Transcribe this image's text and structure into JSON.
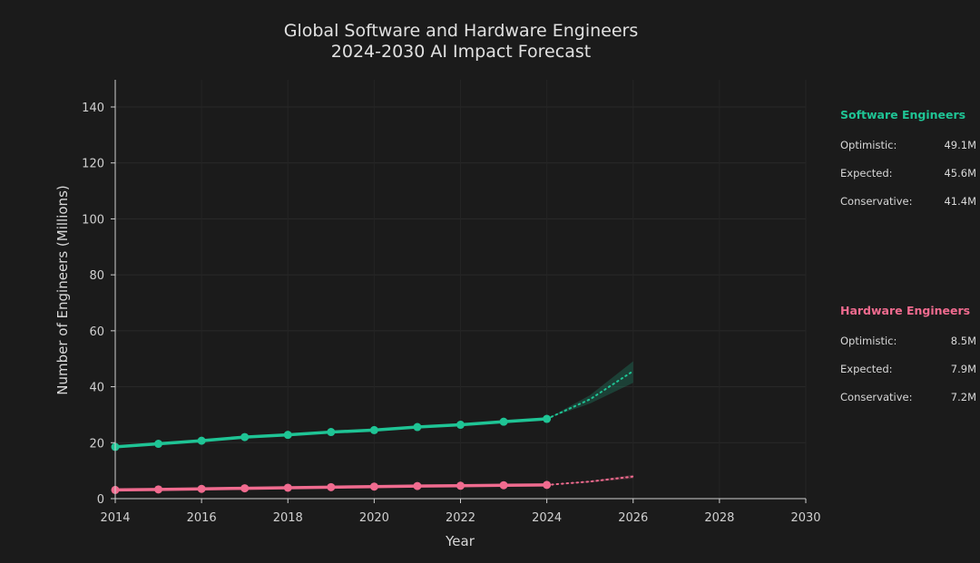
{
  "chart_data": {
    "type": "line",
    "title": "Global Software and Hardware Engineers",
    "subtitle": "2024-2030 AI Impact Forecast",
    "xlabel": "Year",
    "ylabel": "Number of Engineers (Millions)",
    "xlim": [
      2014,
      2030
    ],
    "ylim": [
      0,
      150
    ],
    "xticks": [
      2014,
      2016,
      2018,
      2020,
      2022,
      2024,
      2026,
      2028,
      2030
    ],
    "yticks": [
      0,
      20,
      40,
      60,
      80,
      100,
      120,
      140
    ],
    "grid": true,
    "x": [
      2014,
      2015,
      2016,
      2017,
      2018,
      2019,
      2020,
      2021,
      2022,
      2023,
      2024
    ],
    "series": [
      {
        "name": "Software Engineers",
        "color": "#1fc495",
        "values": [
          18.5,
          19.6,
          20.7,
          22.0,
          22.8,
          23.8,
          24.5,
          25.6,
          26.4,
          27.5,
          28.5
        ],
        "forecast": {
          "x": [
            2024,
            2025,
            2026
          ],
          "expected": [
            28.5,
            35.5,
            45.6
          ],
          "optimistic": [
            28.5,
            37.0,
            49.1
          ],
          "conservative": [
            28.5,
            34.0,
            41.4
          ]
        }
      },
      {
        "name": "Hardware Engineers",
        "color": "#f06b8f",
        "values": [
          3.1,
          3.3,
          3.5,
          3.7,
          3.9,
          4.1,
          4.3,
          4.5,
          4.6,
          4.8,
          4.9
        ],
        "forecast": {
          "x": [
            2024,
            2025,
            2026
          ],
          "expected": [
            4.9,
            6.1,
            7.9
          ],
          "optimistic": [
            4.9,
            6.4,
            8.5
          ],
          "conservative": [
            4.9,
            5.8,
            7.2
          ]
        }
      }
    ]
  },
  "panels": [
    {
      "heading": "Software Engineers",
      "color": "#1fc495",
      "rows": [
        {
          "label": "Optimistic:",
          "value": "49.1M"
        },
        {
          "label": "Expected:",
          "value": "45.6M"
        },
        {
          "label": "Conservative:",
          "value": "41.4M"
        }
      ]
    },
    {
      "heading": "Hardware Engineers",
      "color": "#f06b8f",
      "rows": [
        {
          "label": "Optimistic:",
          "value": "8.5M"
        },
        {
          "label": "Expected:",
          "value": "7.9M"
        },
        {
          "label": "Conservative:",
          "value": "7.2M"
        }
      ]
    }
  ]
}
